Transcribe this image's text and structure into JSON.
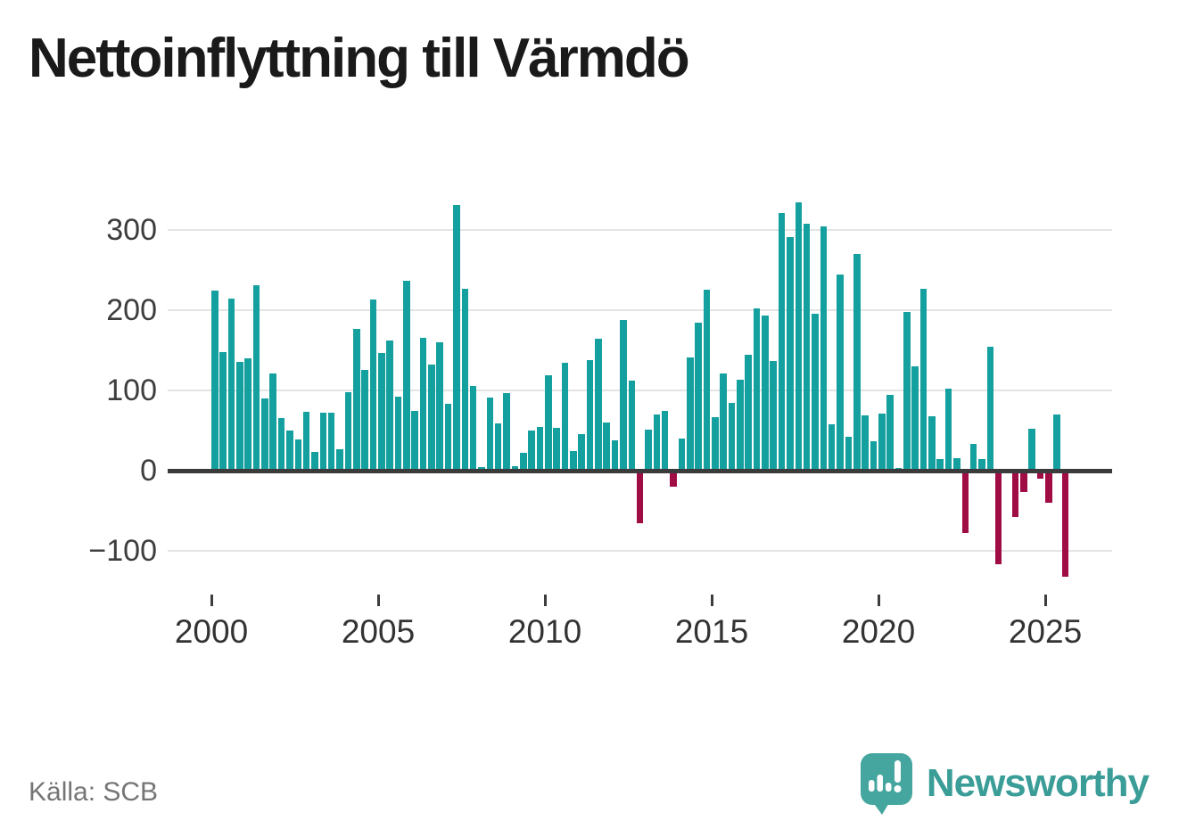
{
  "title": "Nettoinflyttning till Värmdö",
  "footer": {
    "source": "Källa: SCB",
    "brand": "Newsworthy"
  },
  "colors": {
    "positive": "#14a09e",
    "negative": "#a00d45",
    "axis": "#3b3b3b",
    "gridline": "#e4e4e4",
    "tick_text": "#3d3d3d",
    "source_text": "#757575",
    "brand_teal": "#3a9d97",
    "logo_bubble": "#45a69f"
  },
  "chart_data": {
    "type": "bar",
    "title": "Nettoinflyttning till Värmdö",
    "frequency": "quarterly",
    "start": "2000 Q1",
    "end": "2025 Q3",
    "series": [
      {
        "name": "Nettoinflyttning",
        "values": [
          225,
          148,
          215,
          136,
          140,
          231,
          90,
          121,
          66,
          50,
          39,
          73,
          23,
          72,
          72,
          27,
          98,
          177,
          126,
          213,
          147,
          162,
          92,
          237,
          75,
          166,
          132,
          160,
          83,
          331,
          227,
          106,
          5,
          91,
          59,
          97,
          6,
          22,
          50,
          55,
          119,
          53,
          134,
          24,
          46,
          138,
          164,
          60,
          38,
          188,
          112,
          -65,
          51,
          70,
          75,
          -20,
          40,
          141,
          184,
          226,
          67,
          121,
          84,
          113,
          144,
          202,
          193,
          137,
          321,
          291,
          334,
          308,
          196,
          305,
          58,
          244,
          42,
          270,
          69,
          37,
          71,
          94,
          3,
          198,
          130,
          227,
          68,
          15,
          102,
          16,
          -78,
          33,
          15,
          154,
          -117,
          0,
          -58,
          -27,
          52,
          -10,
          -40,
          70,
          -132
        ]
      }
    ],
    "x_axis": {
      "ticks": [
        "2000",
        "2005",
        "2010",
        "2015",
        "2020",
        "2025"
      ],
      "quarters_per_tick": 20
    },
    "y_axis": {
      "ticks": [
        300,
        200,
        100,
        0,
        -100
      ],
      "labels": [
        "300",
        "200",
        "100",
        "0",
        "−100"
      ],
      "range": [
        -150,
        350
      ]
    },
    "grid": true,
    "legend": false,
    "bar_color_positive": "#14a09e",
    "bar_color_negative": "#a00d45"
  }
}
